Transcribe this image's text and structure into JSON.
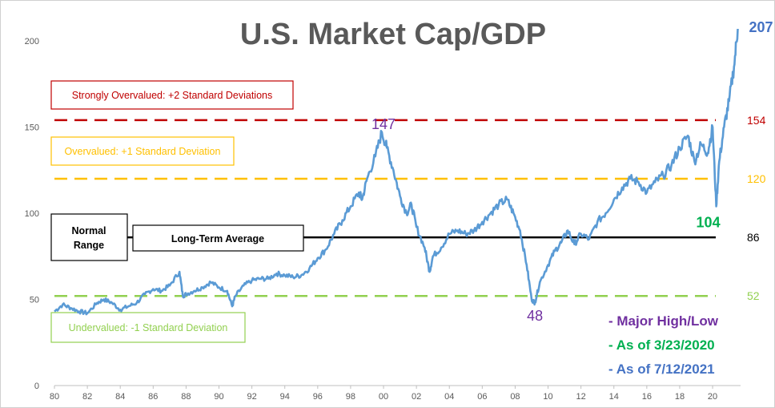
{
  "chart_data": {
    "type": "line",
    "title": "U.S. Market Cap/GDP",
    "xlim": [
      1980,
      2021.7
    ],
    "ylim": [
      0,
      200
    ],
    "x_ticks": [
      "80",
      "82",
      "84",
      "86",
      "88",
      "90",
      "92",
      "94",
      "96",
      "98",
      "00",
      "02",
      "04",
      "06",
      "08",
      "10",
      "12",
      "14",
      "16",
      "18",
      "20"
    ],
    "y_ticks": [
      "0",
      "50",
      "100",
      "150",
      "200"
    ],
    "series": [
      {
        "color": "#5b9bd5",
        "x": [
          1980.0,
          1980.5,
          1981.0,
          1981.5,
          1982.0,
          1982.6,
          1983.0,
          1983.5,
          1984.0,
          1984.5,
          1985.0,
          1985.5,
          1986.0,
          1986.5,
          1987.0,
          1987.6,
          1987.8,
          1988.0,
          1988.5,
          1989.0,
          1989.5,
          1990.0,
          1990.5,
          1990.8,
          1991.0,
          1991.5,
          1992.0,
          1992.5,
          1993.0,
          1993.5,
          1994.0,
          1994.5,
          1995.0,
          1995.5,
          1996.0,
          1996.5,
          1997.0,
          1997.5,
          1998.0,
          1998.5,
          1998.7,
          1999.0,
          1999.5,
          1999.9,
          2000.2,
          2000.6,
          2001.0,
          2001.4,
          2001.7,
          2002.0,
          2002.5,
          2002.8,
          2003.0,
          2003.5,
          2004.0,
          2004.5,
          2005.0,
          2005.5,
          2006.0,
          2006.5,
          2007.0,
          2007.5,
          2007.9,
          2008.3,
          2008.7,
          2009.0,
          2009.2,
          2009.5,
          2010.0,
          2010.4,
          2010.8,
          2011.2,
          2011.6,
          2012.0,
          2012.5,
          2013.0,
          2013.5,
          2014.0,
          2014.5,
          2015.0,
          2015.5,
          2016.0,
          2016.5,
          2017.0,
          2017.5,
          2018.0,
          2018.5,
          2018.9,
          2019.3,
          2019.7,
          2020.0,
          2020.22,
          2020.4,
          2020.7,
          2021.0,
          2021.3,
          2021.53
        ],
        "y": [
          43,
          47,
          45,
          43,
          42,
          48,
          50,
          48,
          44,
          46,
          48,
          53,
          56,
          55,
          58,
          66,
          52,
          53,
          55,
          57,
          60,
          57,
          55,
          46,
          52,
          58,
          61,
          62,
          62,
          65,
          64,
          63,
          64,
          68,
          74,
          79,
          88,
          96,
          104,
          112,
          108,
          120,
          133,
          147,
          138,
          125,
          110,
          100,
          105,
          92,
          80,
          66,
          75,
          80,
          88,
          90,
          88,
          90,
          95,
          100,
          105,
          108,
          100,
          90,
          70,
          50,
          48,
          60,
          70,
          78,
          83,
          90,
          82,
          88,
          85,
          95,
          100,
          108,
          115,
          120,
          118,
          112,
          118,
          122,
          128,
          138,
          145,
          130,
          140,
          135,
          150,
          104,
          130,
          150,
          165,
          185,
          207
        ]
      }
    ],
    "reference_lines": [
      {
        "value": 154,
        "label": "154",
        "color": "#c00000",
        "style": "dashed"
      },
      {
        "value": 120,
        "label": "120",
        "color": "#ffc000",
        "style": "dashed"
      },
      {
        "value": 86,
        "label": "86",
        "color": "#000000",
        "style": "solid"
      },
      {
        "value": 52,
        "label": "52",
        "color": "#92d050",
        "style": "dashed"
      }
    ],
    "annotations": [
      {
        "text": "147",
        "x": 2000.0,
        "y": 147,
        "color": "#7030a0"
      },
      {
        "text": "48",
        "x": 2009.2,
        "y": 48,
        "color": "#7030a0"
      },
      {
        "text": "104",
        "x": 2020.22,
        "y": 104,
        "color": "#00b050"
      },
      {
        "text": "207",
        "x": 2021.53,
        "y": 207,
        "color": "#4472c4"
      }
    ],
    "zone_labels": [
      {
        "text": "Strongly Overvalued: +2 Standard Deviations",
        "color": "#c00000"
      },
      {
        "text": "Overvalued: +1 Standard Deviation",
        "color": "#ffc000"
      },
      {
        "text": "Normal Range",
        "color": "#000000"
      },
      {
        "text": "Long-Term Average",
        "color": "#000000"
      },
      {
        "text": "Undervalued: -1 Standard Deviation",
        "color": "#92d050"
      }
    ],
    "legend": [
      {
        "text": "- Major High/Low",
        "color": "#7030a0"
      },
      {
        "text": "- As of 3/23/2020",
        "color": "#00b050"
      },
      {
        "text": "- As of 7/12/2021",
        "color": "#4472c4"
      }
    ],
    "grid": false
  }
}
